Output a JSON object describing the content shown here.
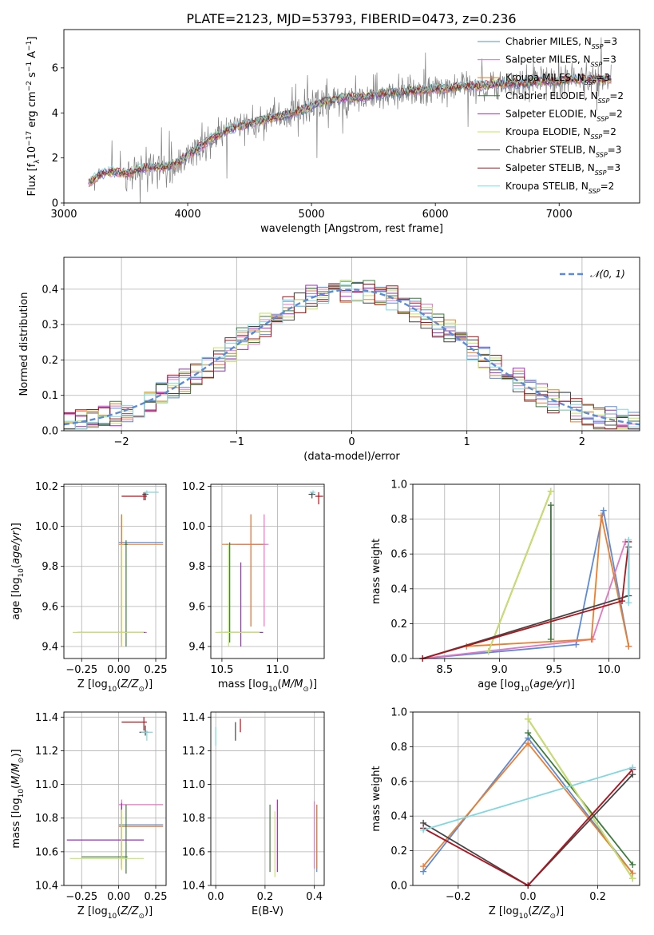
{
  "title": "PLATE=2123, MJD=53793, FIBERID=0473, z=0.236",
  "colors": {
    "chabrier_miles": "#5b8bd8",
    "salpeter_miles": "#e377c2",
    "kroupa_miles": "#ee7d2a",
    "chabrier_elodie": "#3a7a3a",
    "salpeter_elodie": "#9b2fbf",
    "kroupa_elodie": "#c3e65c",
    "chabrier_stelib": "#444444",
    "salpeter_stelib": "#b0141c",
    "kroupa_stelib": "#7fd8e0",
    "data_gray": "#808080",
    "gaussian": "#5b8bd8",
    "grid": "#b0b0b0"
  },
  "chart_data": [
    {
      "id": "spectrum",
      "type": "line",
      "xlabel": "wavelength [Angstrom, rest frame]",
      "ylabel": "Flux [f",
      "xlim": [
        3000,
        7650
      ],
      "ylim": [
        0,
        7.7
      ],
      "xticks": [
        "3000",
        "4000",
        "5000",
        "6000",
        "7000"
      ],
      "yticks": [
        "0",
        "2",
        "4",
        "6"
      ],
      "legend_position": "top-right",
      "series": [
        {
          "name": "Chabrier MILES, N",
          "sub": "SSP",
          "suffix": "=3",
          "color": "#5b8bd8"
        },
        {
          "name": "Salpeter MILES, N",
          "sub": "SSP",
          "suffix": "=3",
          "color": "#e377c2"
        },
        {
          "name": "Kroupa MILES, N",
          "sub": "SSP",
          "suffix": "=3",
          "color": "#ee7d2a"
        },
        {
          "name": "Chabrier ELODIE, N",
          "sub": "SSP",
          "suffix": "=2",
          "color": "#3a7a3a"
        },
        {
          "name": "Salpeter ELODIE, N",
          "sub": "SSP",
          "suffix": "=2",
          "color": "#9b2fbf"
        },
        {
          "name": "Kroupa ELODIE, N",
          "sub": "SSP",
          "suffix": "=2",
          "color": "#c3e65c"
        },
        {
          "name": "Chabrier STELIB, N",
          "sub": "SSP",
          "suffix": "=3",
          "color": "#444444"
        },
        {
          "name": "Salpeter STELIB, N",
          "sub": "SSP",
          "suffix": "=3",
          "color": "#b0141c"
        },
        {
          "name": "Kroupa STELIB, N",
          "sub": "SSP",
          "suffix": "=2",
          "color": "#7fd8e0"
        }
      ],
      "continuum": {
        "x": [
          3200,
          3300,
          3400,
          3500,
          3600,
          3700,
          3800,
          3900,
          4000,
          4100,
          4200,
          4300,
          4400,
          4500,
          4600,
          4700,
          4800,
          4900,
          5000,
          5100,
          5200,
          5300,
          5400,
          5500,
          5600,
          5700,
          5800,
          5900,
          6000,
          6100,
          6200,
          6300,
          6400,
          6500,
          6600,
          6700,
          6800,
          6900,
          7000,
          7100,
          7200,
          7300,
          7400
        ],
        "y": [
          0.9,
          1.3,
          1.4,
          1.3,
          1.5,
          1.6,
          1.6,
          1.7,
          2.1,
          2.5,
          2.9,
          3.2,
          3.4,
          3.5,
          3.7,
          3.8,
          3.9,
          4.1,
          4.3,
          4.5,
          4.6,
          4.7,
          4.7,
          4.8,
          4.9,
          4.9,
          5.0,
          5.0,
          5.1,
          5.1,
          5.2,
          5.2,
          5.2,
          5.3,
          5.3,
          5.3,
          5.4,
          5.4,
          5.4,
          5.5,
          5.5,
          5.5,
          5.5
        ]
      }
    },
    {
      "id": "residuals",
      "type": "histogram",
      "xlabel": "(data-model)/error",
      "ylabel": "Normed distribution",
      "xlim": [
        -2.5,
        2.5
      ],
      "ylim": [
        0,
        0.49
      ],
      "xticks": [
        "−2",
        "−1",
        "0",
        "1",
        "2"
      ],
      "yticks": [
        "0.0",
        "0.1",
        "0.2",
        "0.3",
        "0.4"
      ],
      "legend": "𝒩(0, 1)",
      "bin_edges_start": -2.5,
      "bin_width": 0.1
    },
    {
      "id": "z_vs_age",
      "type": "errorbar",
      "xlabel": "Z [log",
      "ylabel": "age  [log",
      "xlim": [
        -0.37,
        0.32
      ],
      "ylim": [
        9.34,
        10.21
      ],
      "xticks": [
        "−0.25",
        "0.00",
        "0.25"
      ],
      "yticks": [
        "9.4",
        "9.6",
        "9.8",
        "10.0",
        "10.2"
      ],
      "points": [
        {
          "series": "Chabrier MILES",
          "x": 0.02,
          "y": 9.92,
          "xerr": [
            0.02,
            0.28
          ],
          "yerr": [
            0.5,
            0.14
          ]
        },
        {
          "series": "Salpeter MILES",
          "x": 0.02,
          "y": 9.47,
          "xerr": [
            0.3,
            0.17
          ],
          "yerr": [
            0.05,
            0.58
          ]
        },
        {
          "series": "Kroupa MILES",
          "x": 0.02,
          "y": 9.91,
          "xerr": [
            0.02,
            0.28
          ],
          "yerr": [
            0.41,
            0.15
          ]
        },
        {
          "series": "Chabrier ELODIE",
          "x": 0.05,
          "y": 9.91,
          "xerr": [
            0.01,
            0.01
          ],
          "yerr": [
            0.51,
            0.02
          ]
        },
        {
          "series": "Salpeter ELODIE",
          "x": 0.02,
          "y": 9.47,
          "xerr": [
            0.3,
            0.16
          ],
          "yerr": [
            0.07,
            0.44
          ]
        },
        {
          "series": "Kroupa ELODIE",
          "x": 0.02,
          "y": 9.47,
          "xerr": [
            0.33,
            0.15
          ],
          "yerr": [
            0.07,
            0.44
          ]
        },
        {
          "series": "Chabrier STELIB",
          "x": 0.18,
          "y": 10.16,
          "xerr": [
            0.02,
            0.02
          ],
          "yerr": [
            0.03,
            0.01
          ]
        },
        {
          "series": "Salpeter STELIB",
          "x": 0.17,
          "y": 10.15,
          "xerr": [
            0.15,
            0.02
          ],
          "yerr": [
            0.02,
            0.02
          ]
        },
        {
          "series": "Kroupa STELIB",
          "x": 0.19,
          "y": 10.17,
          "xerr": [
            0.02,
            0.08
          ],
          "yerr": [
            0.01,
            0.01
          ]
        }
      ]
    },
    {
      "id": "mass_vs_age",
      "type": "errorbar",
      "xlabel": "mass [log",
      "ylabel": "",
      "xlim": [
        10.4,
        11.42
      ],
      "ylim": [
        9.34,
        10.21
      ],
      "xticks": [
        "10.5",
        "11.0"
      ],
      "yticks": [
        "9.4",
        "9.6",
        "9.8",
        "10.0",
        "10.2"
      ],
      "points": [
        {
          "series": "Chabrier MILES",
          "x": 10.76,
          "y": 9.91,
          "xerr": [
            0.22,
            0.14
          ],
          "yerr": [
            0.41,
            0.15
          ]
        },
        {
          "series": "Salpeter MILES",
          "x": 10.88,
          "y": 9.91,
          "xerr": [
            0.25,
            0.04
          ],
          "yerr": [
            0.41,
            0.15
          ]
        },
        {
          "series": "Kroupa MILES",
          "x": 10.76,
          "y": 9.91,
          "xerr": [
            0.26,
            0.11
          ],
          "yerr": [
            0.41,
            0.15
          ]
        },
        {
          "series": "Chabrier ELODIE",
          "x": 10.57,
          "y": 9.47,
          "xerr": [
            0.1,
            0.3
          ],
          "yerr": [
            0.05,
            0.45
          ]
        },
        {
          "series": "Salpeter ELODIE",
          "x": 10.67,
          "y": 9.47,
          "xerr": [
            0.15,
            0.2
          ],
          "yerr": [
            0.07,
            0.35
          ]
        },
        {
          "series": "Kroupa ELODIE",
          "x": 10.56,
          "y": 9.47,
          "xerr": [
            0.12,
            0.28
          ],
          "yerr": [
            0.07,
            0.44
          ]
        },
        {
          "series": "Chabrier STELIB",
          "x": 11.31,
          "y": 10.16,
          "xerr": [
            0.03,
            0.03
          ],
          "yerr": [
            0.02,
            0.01
          ]
        },
        {
          "series": "Salpeter STELIB",
          "x": 11.37,
          "y": 10.15,
          "xerr": [
            0.03,
            0.04
          ],
          "yerr": [
            0.04,
            0.02
          ]
        },
        {
          "series": "Kroupa STELIB",
          "x": 11.32,
          "y": 10.17,
          "xerr": [
            0.03,
            0.02
          ],
          "yerr": [
            0.01,
            0.01
          ]
        }
      ]
    },
    {
      "id": "age_vs_weight",
      "type": "line",
      "xlabel": "age  [log",
      "ylabel": "mass weight",
      "xlim": [
        8.21,
        10.28
      ],
      "ylim": [
        0,
        1
      ],
      "xticks": [
        "8.5",
        "9.0",
        "9.5",
        "10.0"
      ],
      "yticks": [
        "0.0",
        "0.2",
        "0.4",
        "0.6",
        "0.8",
        "1.0"
      ],
      "series": [
        {
          "name": "Chabrier MILES",
          "x": [
            8.3,
            9.7,
            9.95,
            10.18
          ],
          "y": [
            0.0,
            0.08,
            0.85,
            0.07
          ]
        },
        {
          "name": "Salpeter MILES",
          "x": [
            8.3,
            9.85,
            10.15
          ],
          "y": [
            0.0,
            0.11,
            0.67
          ]
        },
        {
          "name": "Kroupa MILES",
          "x": [
            8.7,
            9.84,
            9.93,
            10.18
          ],
          "y": [
            0.07,
            0.11,
            0.82,
            0.07
          ]
        },
        {
          "name": "Chabrier ELODIE",
          "x": [
            9.47,
            9.47
          ],
          "y": [
            0.11,
            0.88
          ]
        },
        {
          "name": "Salpeter ELODIE",
          "x": [
            8.9,
            9.47
          ],
          "y": [
            0.04,
            0.96
          ]
        },
        {
          "name": "Kroupa ELODIE",
          "x": [
            8.9,
            9.47
          ],
          "y": [
            0.04,
            0.96
          ]
        },
        {
          "name": "Chabrier STELIB",
          "x": [
            8.3,
            10.18,
            10.18
          ],
          "y": [
            0.0,
            0.36,
            0.64
          ]
        },
        {
          "name": "Salpeter STELIB",
          "x": [
            8.3,
            10.12,
            10.18
          ],
          "y": [
            0.0,
            0.33,
            0.67
          ]
        },
        {
          "name": "Kroupa STELIB",
          "x": [
            10.18,
            10.18
          ],
          "y": [
            0.32,
            0.68
          ]
        }
      ]
    },
    {
      "id": "z_vs_mass",
      "type": "errorbar",
      "xlabel": "Z [log",
      "ylabel": "mass [log",
      "xlim": [
        -0.37,
        0.32
      ],
      "ylim": [
        10.4,
        11.43
      ],
      "xticks": [
        "−0.25",
        "0.00",
        "0.25"
      ],
      "yticks": [
        "10.4",
        "10.6",
        "10.8",
        "11.0",
        "11.2",
        "11.4"
      ],
      "points": [
        {
          "series": "Chabrier MILES",
          "x": 0.02,
          "y": 10.76,
          "xerr": [
            0.02,
            0.28
          ],
          "yerr": [
            0.26,
            0.11
          ]
        },
        {
          "series": "Salpeter MILES",
          "x": 0.02,
          "y": 10.88,
          "xerr": [
            0.02,
            0.28
          ],
          "yerr": [
            0.38,
            0.03
          ]
        },
        {
          "series": "Kroupa MILES",
          "x": 0.02,
          "y": 10.75,
          "xerr": [
            0.02,
            0.28
          ],
          "yerr": [
            0.25,
            0.12
          ]
        },
        {
          "series": "Chabrier ELODIE",
          "x": 0.05,
          "y": 10.57,
          "xerr": [
            0.3,
            0.01
          ],
          "yerr": [
            0.1,
            0.31
          ]
        },
        {
          "series": "Salpeter ELODIE",
          "x": 0.02,
          "y": 10.67,
          "xerr": [
            0.37,
            0.15
          ],
          "yerr": [
            0.15,
            0.22
          ]
        },
        {
          "series": "Kroupa ELODIE",
          "x": 0.02,
          "y": 10.56,
          "xerr": [
            0.35,
            0.15
          ],
          "yerr": [
            0.07,
            0.29
          ]
        },
        {
          "series": "Chabrier STELIB",
          "x": 0.18,
          "y": 11.31,
          "xerr": [
            0.04,
            0.02
          ],
          "yerr": [
            0.02,
            0.04
          ]
        },
        {
          "series": "Salpeter STELIB",
          "x": 0.17,
          "y": 11.37,
          "xerr": [
            0.15,
            0.02
          ],
          "yerr": [
            0.05,
            0.03
          ]
        },
        {
          "series": "Kroupa STELIB",
          "x": 0.19,
          "y": 11.31,
          "xerr": [
            0.04,
            0.04
          ],
          "yerr": [
            0.05,
            0.01
          ]
        }
      ]
    },
    {
      "id": "ebv_vs_mass",
      "type": "errorbar",
      "xlabel": "E(B-V)",
      "ylabel": "",
      "xlim": [
        -0.02,
        0.44
      ],
      "ylim": [
        10.4,
        11.43
      ],
      "xticks": [
        "0.0",
        "0.2",
        "0.4"
      ],
      "yticks": [
        "10.4",
        "10.6",
        "10.8",
        "11.0",
        "11.2",
        "11.4"
      ],
      "points": [
        {
          "series": "Chabrier MILES",
          "x": 0.41,
          "y": 10.78,
          "yerr": [
            0.3,
            0.1
          ]
        },
        {
          "series": "Salpeter MILES",
          "x": 0.4,
          "y": 10.85,
          "yerr": [
            0.35,
            0.05
          ]
        },
        {
          "series": "Kroupa MILES",
          "x": 0.41,
          "y": 10.75,
          "yerr": [
            0.25,
            0.13
          ]
        },
        {
          "series": "Chabrier ELODIE",
          "x": 0.22,
          "y": 10.7,
          "yerr": [
            0.22,
            0.18
          ]
        },
        {
          "series": "Salpeter ELODIE",
          "x": 0.25,
          "y": 10.7,
          "yerr": [
            0.22,
            0.21
          ]
        },
        {
          "series": "Kroupa ELODIE",
          "x": 0.24,
          "y": 10.65,
          "yerr": [
            0.2,
            0.19
          ]
        },
        {
          "series": "Chabrier STELIB",
          "x": 0.08,
          "y": 11.31,
          "yerr": [
            0.05,
            0.06
          ]
        },
        {
          "series": "Salpeter STELIB",
          "x": 0.1,
          "y": 11.34,
          "yerr": [
            0.03,
            0.05
          ]
        },
        {
          "series": "Kroupa STELIB",
          "x": 0.0,
          "y": 11.27,
          "yerr": [
            0.04,
            0.07
          ]
        }
      ]
    },
    {
      "id": "z_vs_weight",
      "type": "line",
      "xlabel": "Z [log",
      "ylabel": "mass weight",
      "xlim": [
        -0.33,
        0.32
      ],
      "ylim": [
        0,
        1
      ],
      "xticks": [
        "−0.2",
        "0.0",
        "0.2"
      ],
      "yticks": [
        "0.0",
        "0.2",
        "0.4",
        "0.6",
        "0.8",
        "1.0"
      ],
      "series": [
        {
          "name": "Chabrier MILES",
          "x": [
            -0.3,
            0.0,
            0.3
          ],
          "y": [
            0.08,
            0.85,
            0.07
          ]
        },
        {
          "name": "Salpeter MILES",
          "x": [
            -0.3,
            0.0,
            0.3
          ],
          "y": [
            0.33,
            0.0,
            0.67
          ]
        },
        {
          "name": "Kroupa MILES",
          "x": [
            -0.3,
            0.0,
            0.3
          ],
          "y": [
            0.11,
            0.82,
            0.07
          ]
        },
        {
          "name": "Chabrier ELODIE",
          "x": [
            0.0,
            0.3
          ],
          "y": [
            0.88,
            0.12
          ]
        },
        {
          "name": "Salpeter ELODIE",
          "x": [
            0.0,
            0.3
          ],
          "y": [
            0.96,
            0.04
          ]
        },
        {
          "name": "Kroupa ELODIE",
          "x": [
            0.0,
            0.3
          ],
          "y": [
            0.96,
            0.04
          ]
        },
        {
          "name": "Chabrier STELIB",
          "x": [
            -0.3,
            0.0,
            0.3
          ],
          "y": [
            0.36,
            0.0,
            0.64
          ]
        },
        {
          "name": "Salpeter STELIB",
          "x": [
            -0.3,
            0.0,
            0.3
          ],
          "y": [
            0.33,
            0.0,
            0.67
          ]
        },
        {
          "name": "Kroupa STELIB",
          "x": [
            -0.3,
            0.3
          ],
          "y": [
            0.32,
            0.68
          ]
        }
      ]
    }
  ]
}
